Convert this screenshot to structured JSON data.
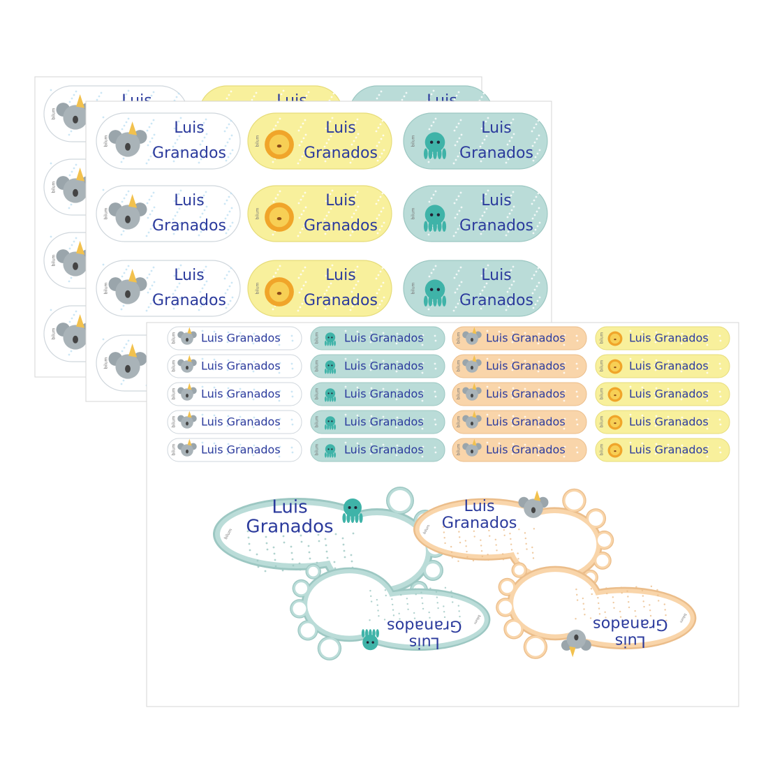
{
  "sticker_text": {
    "first": "Luis",
    "last": "Granados",
    "full": "Luis Granados"
  },
  "brand": "bilum"
}
